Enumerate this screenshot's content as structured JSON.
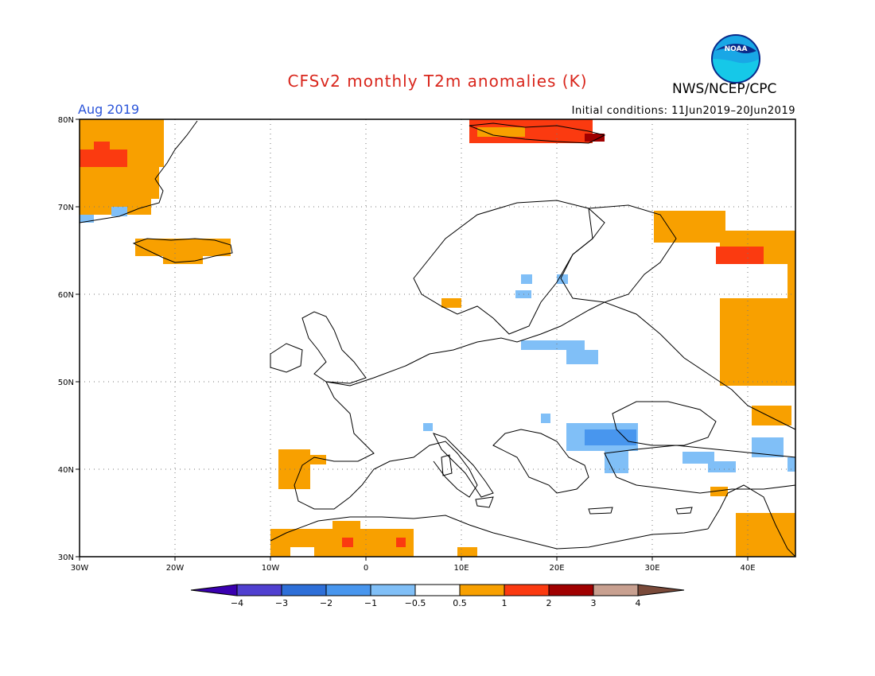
{
  "header": {
    "title": "CFSv2 monthly T2m anomalies (K)",
    "agency": "NWS/NCEP/CPC",
    "logo_text": "NOAA",
    "month": "Aug 2019",
    "initial_conditions": "Initial conditions: 11Jun2019–20Jun2019"
  },
  "axes": {
    "lon_labels": [
      "30W",
      "20W",
      "10W",
      "0",
      "10E",
      "20E",
      "30E",
      "40E"
    ],
    "lat_labels": [
      "30N",
      "40N",
      "50N",
      "60N",
      "70N",
      "80N"
    ]
  },
  "colorbar": {
    "labels": [
      "−4",
      "−3",
      "−2",
      "−1",
      "−0.5",
      "0.5",
      "1",
      "2",
      "3",
      "4"
    ],
    "colors": [
      "#3a00b0",
      "#5040d0",
      "#2e6fd8",
      "#4896ee",
      "#80bff7",
      "#ffffff",
      "#f8a000",
      "#fb3a10",
      "#a00000",
      "#c8a090",
      "#7a4a3a"
    ]
  },
  "map_data": {
    "legend_colors": {
      "warm1": "#f8a000",
      "warm2": "#fb3a10",
      "warm3": "#a00000",
      "cool1": "#80bff7",
      "cool2": "#4896ee"
    }
  }
}
